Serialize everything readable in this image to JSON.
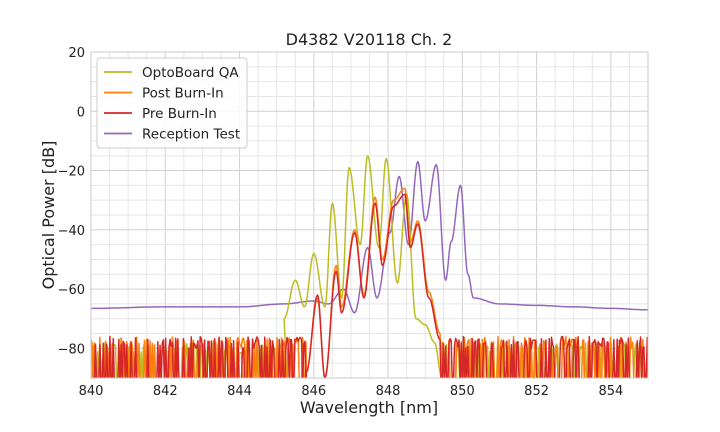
{
  "chart_data": {
    "type": "line",
    "title": "D4382 V20118 Ch. 2",
    "xlabel": "Wavelength [nm]",
    "ylabel": "Optical Power [dB]",
    "xlim": [
      840,
      855
    ],
    "ylim": [
      -90,
      20
    ],
    "xticks": [
      840,
      842,
      844,
      846,
      848,
      850,
      852,
      854
    ],
    "yticks": [
      20,
      0,
      -20,
      -40,
      -60,
      -80
    ],
    "grid": true,
    "legend_position": "top-left",
    "series": [
      {
        "name": "OptoBoard QA",
        "color": "#bcbd22",
        "noise_floor": -80,
        "noise_range": [
          840,
          845.3
        ],
        "x": [
          845.2,
          845.5,
          845.75,
          846.0,
          846.3,
          846.5,
          846.75,
          846.95,
          847.25,
          847.45,
          847.75,
          847.95,
          848.25,
          848.5,
          848.75,
          849.0,
          849.25,
          849.45
        ],
        "y": [
          -70,
          -57,
          -66,
          -48,
          -66,
          -31,
          -63,
          -19,
          -45,
          -15,
          -46,
          -16,
          -58,
          -28,
          -70,
          -72,
          -78,
          -90
        ]
      },
      {
        "name": "Post Burn-In",
        "color": "#ff7f0e",
        "noise_floor": -78,
        "noise_range": [
          840,
          845.8
        ],
        "x": [
          845.8,
          846.1,
          846.3,
          846.6,
          846.75,
          847.1,
          847.35,
          847.65,
          847.85,
          848.15,
          848.45,
          848.6,
          848.8,
          849.1,
          849.4
        ],
        "y": [
          -88,
          -63,
          -90,
          -52,
          -66,
          -40,
          -62,
          -29,
          -50,
          -30,
          -26,
          -44,
          -37,
          -61,
          -75
        ]
      },
      {
        "name": "Pre Burn-In",
        "color": "#d62728",
        "noise_floor": -78,
        "noise_range": [
          840,
          845.8
        ],
        "x": [
          845.8,
          846.1,
          846.3,
          846.6,
          846.75,
          847.1,
          847.35,
          847.65,
          847.85,
          848.15,
          848.45,
          848.6,
          848.8,
          849.1,
          849.4
        ],
        "y": [
          -88,
          -62,
          -90,
          -54,
          -68,
          -41,
          -63,
          -31,
          -52,
          -32,
          -28,
          -46,
          -38,
          -63,
          -77
        ]
      },
      {
        "name": "Reception Test",
        "color": "#9467bd",
        "x": [
          840,
          842,
          844,
          845.2,
          846.0,
          846.4,
          846.8,
          847.1,
          847.45,
          847.7,
          848.05,
          848.3,
          848.55,
          848.8,
          849.0,
          849.3,
          849.55,
          849.7,
          849.95,
          850.15,
          850.3,
          851,
          852,
          853,
          854,
          855
        ],
        "y": [
          -66.5,
          -66,
          -66,
          -65,
          -64,
          -65,
          -60,
          -68,
          -46,
          -63,
          -41,
          -22,
          -45,
          -17,
          -37,
          -18,
          -57,
          -44,
          -25,
          -55,
          -63,
          -65,
          -65.5,
          -66,
          -66.5,
          -67
        ]
      }
    ]
  }
}
